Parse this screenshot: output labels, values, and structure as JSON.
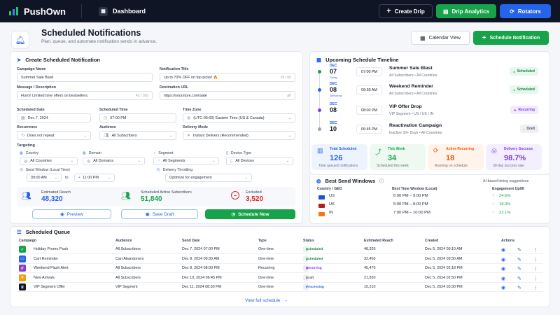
{
  "topbar": {
    "brand": "PushOwn",
    "dashboard": "Dashboard",
    "create_drip": "Create Drip",
    "drip_analytics": "Drip Analytics",
    "rotators": "Rotators"
  },
  "header": {
    "title": "Scheduled Notifications",
    "subtitle": "Plan, queue, and automate notification sends in advance.",
    "calendar_view": "Calendar View",
    "schedule_notification": "Schedule Notification"
  },
  "create": {
    "title": "Create Scheduled Notification",
    "campaign_name_label": "Campaign Name",
    "campaign_name": "Summer Sale Blast",
    "notification_title_label": "Notification Title",
    "notification_title": "Up to 70% OFF on top picks! 🔥",
    "notification_title_count": "29 / 60",
    "message_label": "Message / Description",
    "message": "Hurry! Limited time offers on bestsellers.",
    "message_count": "42 / 100",
    "destination_label": "Destination URL",
    "destination": "https://yourstore.com/sale",
    "date_label": "Scheduled Date",
    "date": "Dec 7, 2024",
    "time_label": "Scheduled Time",
    "time": "07:00 PM",
    "tz_label": "Time Zone",
    "tz": "(UTC-05:00) Eastern Time (US & Canada)",
    "recurrence_label": "Recurrence",
    "recurrence": "Does not repeat",
    "audience_label": "Audience",
    "audience": "All Subscribers",
    "delivery_label": "Delivery Mode",
    "delivery": "Instant Delivery (Recommended)",
    "targeting_label": "Targeting",
    "country_label": "Country",
    "country": "All Countries",
    "domain_label": "Domain",
    "domain": "All Domains",
    "segment_label": "Segment",
    "segment": "All Segments",
    "device_label": "Device Type",
    "device": "All Devices",
    "window_label": "Send Window (Local Time)",
    "window_from": "09:00 AM",
    "window_to_word": "to",
    "window_to": "11:00 PM",
    "throttle_label": "Delivery Throttling",
    "throttle": "Optimize for engagement",
    "reach_label": "Estimated Reach",
    "reach": "48,320",
    "active_label": "Scheduled Active Subscribers",
    "active": "51,840",
    "excluded_label": "Excluded",
    "excluded": "3,520",
    "preview": "Preview",
    "save_draft": "Save Draft",
    "schedule_now": "Schedule Now"
  },
  "timeline": {
    "title": "Upcoming Schedule Timeline",
    "items": [
      {
        "mon": "DEC",
        "day": "07",
        "rel": "Today",
        "time": "07:00 PM",
        "name": "Summer Sale Blast",
        "aud": "All Subscribers • All Countries",
        "status": "Scheduled"
      },
      {
        "mon": "DEC",
        "day": "08",
        "rel": "Tomorrow",
        "time": "09:30 AM",
        "name": "Weekend Reminder",
        "aud": "All Subscribers • All Countries",
        "status": "Scheduled"
      },
      {
        "mon": "DEC",
        "day": "08",
        "rel": "",
        "time": "08:00 PM",
        "name": "VIP Offer Drop",
        "aud": "VIP Segment • US / UK / IN",
        "status": "Recurring"
      },
      {
        "mon": "DEC",
        "day": "10",
        "rel": "",
        "time": "06:45 PM",
        "name": "Reactivation Campaign",
        "aud": "Inactive 30+ Days • All Countries",
        "status": "Draft"
      }
    ]
  },
  "stats": [
    {
      "label": "Total Scheduled",
      "value": "126",
      "sub": "Total queued notifications",
      "color": "#2563eb"
    },
    {
      "label": "This Week",
      "value": "34",
      "sub": "Scheduled this week",
      "color": "#16a34a"
    },
    {
      "label": "Active Recurring",
      "value": "18",
      "sub": "Running on schedule",
      "color": "#ea580c"
    },
    {
      "label": "Delivery Success",
      "value": "98.7%",
      "sub": "30-day success rate",
      "color": "#7c3aed"
    }
  ],
  "best": {
    "title": "Best Send Windows",
    "note": "AI-based timing suggestions",
    "col_country": "Country / GEO",
    "col_window": "Best Time Window (Local)",
    "col_uplift": "Engagement Uplift",
    "rows": [
      {
        "code": "US",
        "window": "6:00 PM – 9:00 PM",
        "uplift": "24.6%"
      },
      {
        "code": "UK",
        "window": "5:00 PM – 8:00 PM",
        "uplift": "18.3%"
      },
      {
        "code": "IN",
        "window": "7:00 PM – 10:00 PM",
        "uplift": "22.1%"
      }
    ]
  },
  "queue": {
    "title": "Scheduled Queue",
    "headers": [
      "Campaign",
      "Audience",
      "Send Date",
      "Type",
      "Status",
      "Estimated Reach",
      "Created",
      "Actions"
    ],
    "rows": [
      {
        "campaign": "Holiday Promo Push",
        "audience": "All Subscribers",
        "date": "Dec 7, 2024 07:00 PM",
        "type": "One-time",
        "status": "Scheduled",
        "reach": "48,320",
        "created": "Dec 5, 2024 09:10 AM",
        "icon_color": "#16a34a"
      },
      {
        "campaign": "Cart Reminder",
        "audience": "Cart Abandoners",
        "date": "Dec 8, 2024 09:30 AM",
        "type": "One-time",
        "status": "Scheduled",
        "reach": "32,450",
        "created": "Dec 5, 2024 09:30 AM",
        "icon_color": "#2563eb"
      },
      {
        "campaign": "Weekend Flash Alert",
        "audience": "All Subscribers",
        "date": "Dec 8, 2024 08:00 PM",
        "type": "Recurring",
        "status": "Recurring",
        "reach": "45,470",
        "created": "Dec 5, 2024 02:18 PM",
        "icon_color": "#7c3aed"
      },
      {
        "campaign": "New Arrivals",
        "audience": "All Subscribers",
        "date": "Dec 10, 2024 06:45 PM",
        "type": "One-time",
        "status": "Draft",
        "reach": "21,830",
        "created": "Dec 5, 2024 02:50 PM",
        "icon_color": "#f59e0b"
      },
      {
        "campaign": "VIP Segment Offer",
        "audience": "VIP Segment",
        "date": "Dec 11, 2024 08:30 PM",
        "type": "One-time",
        "status": "Processing",
        "reach": "15,210",
        "created": "Dec 5, 2024 03:30 PM",
        "icon_color": "#111827"
      }
    ],
    "view_full": "View full schedule"
  }
}
